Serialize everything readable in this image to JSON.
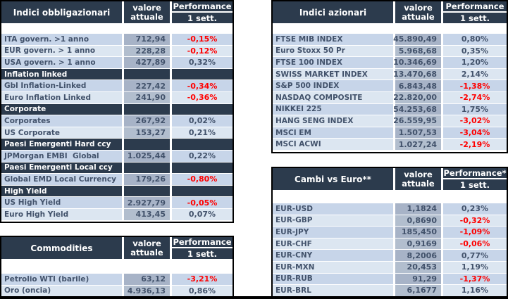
{
  "colors": {
    "header_bg": "#2C3B4D",
    "row_dark": "#C7D5E9",
    "row_light": "#DCE6F1",
    "value_dark": "#A7B3C7",
    "value_light": "#B2BECE",
    "text": "#42526B",
    "negative": "#FF0000"
  },
  "tables": {
    "bonds": {
      "title": "Indici obbligazionari",
      "value_header_line1": "valore",
      "value_header_line2": "attuale",
      "perf_header": "Performance",
      "perf_sub": "1 sett.",
      "rows": [
        {
          "type": "data",
          "label": "ITA govern. >1 anno",
          "value": "712,94",
          "perf": "-0,15%",
          "negative": true
        },
        {
          "type": "data",
          "label": "EUR govern. > 1 anno",
          "value": "228,28",
          "perf": "-0,12%",
          "negative": true
        },
        {
          "type": "data",
          "label": "USA govern. > 1 anno",
          "value": "427,89",
          "perf": "0,32%",
          "negative": false
        },
        {
          "type": "section",
          "label": "Inflation linked"
        },
        {
          "type": "data",
          "label": "Gbl Inflation-Linked",
          "value": "227,42",
          "perf": "-0,34%",
          "negative": true
        },
        {
          "type": "data",
          "label": "Euro Inflation Linked",
          "value": "241,90",
          "perf": "-0,36%",
          "negative": true
        },
        {
          "type": "section",
          "label": "Corporate"
        },
        {
          "type": "data",
          "label": "Corporates",
          "value": "267,92",
          "perf": "0,02%",
          "negative": false
        },
        {
          "type": "data",
          "label": "US Corporate",
          "value": "153,27",
          "perf": "0,21%",
          "negative": false
        },
        {
          "type": "section",
          "label": "Paesi Emergenti Hard ccy"
        },
        {
          "type": "data",
          "label": "JPMorgan EMBI  Global",
          "value": "1.025,44",
          "perf": "0,22%",
          "negative": false
        },
        {
          "type": "section",
          "label": "Paesi Emergenti Local ccy"
        },
        {
          "type": "data",
          "label": "Global EMD Local Currency",
          "value": "179,26",
          "perf": "-0,80%",
          "negative": true
        },
        {
          "type": "section",
          "label": "High Yield"
        },
        {
          "type": "data",
          "label": "US High Yield",
          "value": "2.927,79",
          "perf": "-0,05%",
          "negative": true
        },
        {
          "type": "data",
          "label": "Euro High Yield",
          "value": "413,45",
          "perf": "0,07%",
          "negative": false
        }
      ]
    },
    "commodities": {
      "title": "Commodities",
      "value_header_line1": "valore",
      "value_header_line2": "attuale",
      "perf_header": "Performance",
      "perf_sub": "1 sett.",
      "rows": [
        {
          "type": "data",
          "label": "Petrolio WTI (barile)",
          "value": "63,12",
          "perf": "-3,21%",
          "negative": true
        },
        {
          "type": "data",
          "label": "Oro (oncia)",
          "value": "4.936,13",
          "perf": "0,86%",
          "negative": false
        }
      ]
    },
    "equities": {
      "title": "Indici azionari",
      "value_header_line1": "valore",
      "value_header_line2": "attuale",
      "perf_header": "Performance",
      "perf_sub": "1 sett.",
      "rows": [
        {
          "type": "data",
          "label": "FTSE MIB INDEX",
          "value": "45.890,49",
          "perf": "0,80%",
          "negative": false
        },
        {
          "type": "data",
          "label": "Euro Stoxx 50 Pr",
          "value": "5.968,68",
          "perf": "0,35%",
          "negative": false
        },
        {
          "type": "data",
          "label": "FTSE 100 INDEX",
          "value": "10.346,69",
          "perf": "1,20%",
          "negative": false
        },
        {
          "type": "data",
          "label": "SWISS MARKET INDEX",
          "value": "13.470,68",
          "perf": "2,14%",
          "negative": false
        },
        {
          "type": "data",
          "label": "S&P 500 INDEX",
          "value": "6.843,48",
          "perf": "-1,38%",
          "negative": true
        },
        {
          "type": "data",
          "label": "NASDAQ COMPOSITE",
          "value": "22.820,00",
          "perf": "-2,74%",
          "negative": true
        },
        {
          "type": "data",
          "label": "NIKKEI 225",
          "value": "54.253,68",
          "perf": "1,75%",
          "negative": false
        },
        {
          "type": "data",
          "label": "HANG SENG INDEX",
          "value": "26.559,95",
          "perf": "-3,02%",
          "negative": true
        },
        {
          "type": "data",
          "label": "MSCI EM",
          "value": "1.507,53",
          "perf": "-3,04%",
          "negative": true
        },
        {
          "type": "data",
          "label": "MSCI ACWI",
          "value": "1.027,24",
          "perf": "-2,19%",
          "negative": true
        }
      ]
    },
    "fx": {
      "title": "Cambi vs Euro**",
      "value_header_line1": "valore",
      "value_header_line2": "attuale",
      "perf_header": "Performance*",
      "perf_sub": "1 sett.",
      "rows": [
        {
          "type": "data",
          "label": "EUR-USD",
          "value": "1,1824",
          "perf": "0,23%",
          "negative": false
        },
        {
          "type": "data",
          "label": "EUR-GBP",
          "value": "0,8690",
          "perf": "-0,32%",
          "negative": true
        },
        {
          "type": "data",
          "label": "EUR-JPY",
          "value": "185,450",
          "perf": "-1,09%",
          "negative": true
        },
        {
          "type": "data",
          "label": "EUR-CHF",
          "value": "0,9169",
          "perf": "-0,06%",
          "negative": true
        },
        {
          "type": "data",
          "label": "EUR-CNY",
          "value": "8,2006",
          "perf": "0,77%",
          "negative": false
        },
        {
          "type": "data",
          "label": "EUR-MXN",
          "value": "20,453",
          "perf": "1,19%",
          "negative": false
        },
        {
          "type": "data",
          "label": "EUR-RUB",
          "value": "91,29",
          "perf": "-1,37%",
          "negative": true
        },
        {
          "type": "data",
          "label": "EUR-BRL",
          "value": "6,1677",
          "perf": "1,16%",
          "negative": false
        }
      ]
    }
  }
}
